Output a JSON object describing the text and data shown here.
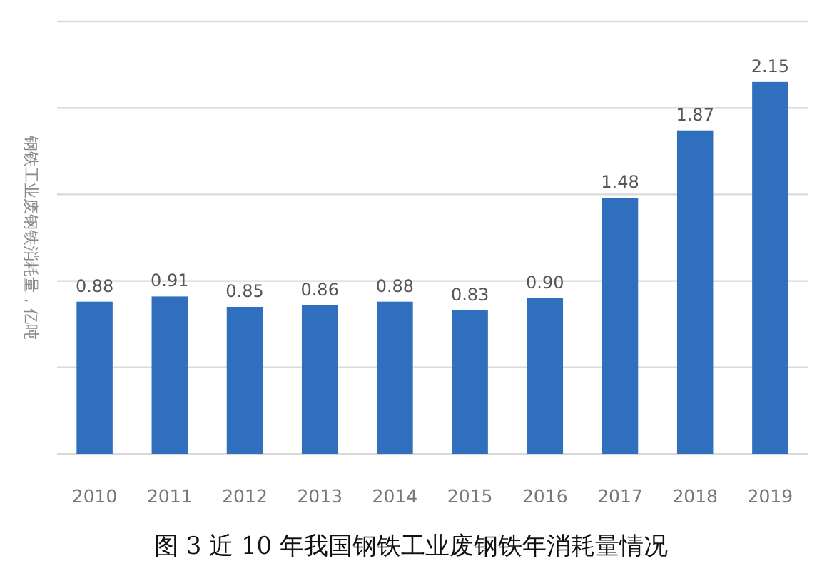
{
  "chart_data": {
    "type": "bar",
    "ylabel": "钢铁工业废钢铁消耗量，亿吨",
    "categories": [
      "2010",
      "2011",
      "2012",
      "2013",
      "2014",
      "2015",
      "2016",
      "2017",
      "2018",
      "2019"
    ],
    "values": [
      0.88,
      0.91,
      0.85,
      0.86,
      0.88,
      0.83,
      0.9,
      1.48,
      1.87,
      2.15
    ],
    "value_labels": [
      "0.88",
      "0.91",
      "0.85",
      "0.86",
      "0.88",
      "0.83",
      "0.90",
      "1.48",
      "1.87",
      "2.15"
    ],
    "color": "#2f6fbe",
    "ylim": [
      0,
      2.5
    ],
    "yticks": [
      {
        "value": 0,
        "label": null
      },
      {
        "value": 0.5,
        "label": null
      },
      {
        "value": 1,
        "label": null
      },
      {
        "value": 1.5,
        "label": null
      },
      {
        "value": 2,
        "label": null
      },
      {
        "value": 2.5,
        "label": null
      }
    ],
    "grid": "y",
    "annotations": [
      "图 3  近 10 年我国钢铁工业废钢铁年消耗量情况"
    ]
  }
}
